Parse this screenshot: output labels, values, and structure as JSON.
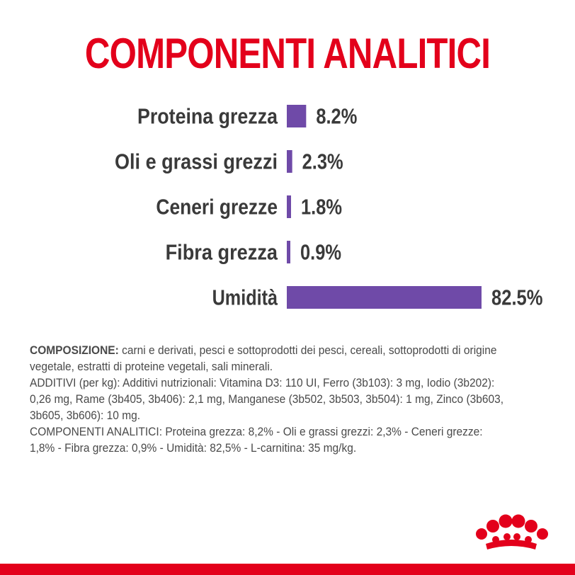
{
  "title": "COMPONENTI ANALITICI",
  "colors": {
    "title": "#e3001b",
    "bars": "#6f4aa8",
    "labels": "#3a3a3a",
    "body_text": "#4a4a4a",
    "brand": "#e3001b"
  },
  "chart_data": {
    "type": "bar",
    "orientation": "horizontal",
    "title": "COMPONENTI ANALITICI",
    "categories": [
      "Proteina grezza",
      "Oli e grassi grezzi",
      "Ceneri grezze",
      "Fibra grezza",
      "Umidità"
    ],
    "values": [
      8.2,
      2.3,
      1.8,
      0.9,
      82.5
    ],
    "value_labels": [
      "8.2%",
      "2.3%",
      "1.8%",
      "0.9%",
      "82.5%"
    ],
    "unit": "%",
    "xlim": [
      0,
      82.5
    ],
    "grid": false,
    "legend": "none"
  },
  "composition": {
    "composizione_heading": "COMPOSIZIONE:",
    "composizione_text": " carni e derivati, pesci e sottoprodotti dei pesci, cereali, sottoprodotti di origine vegetale, estratti di proteine vegetali, sali minerali.",
    "additivi_text": "ADDITIVI (per kg): Additivi nutrizionali: Vitamina D3: 110 UI, Ferro (3b103): 3 mg, Iodio (3b202): 0,26 mg, Rame (3b405, 3b406): 2,1 mg, Manganese (3b502, 3b503, 3b504): 1 mg, Zinco (3b603, 3b605, 3b606): 10 mg.",
    "componenti_text": "COMPONENTI ANALITICI: Proteina grezza: 8,2% - Oli e grassi grezzi: 2,3% - Ceneri grezze: 1,8% - Fibra grezza: 0,9% - Umidità: 82,5% - L-carnitina: 35 mg/kg."
  },
  "logo": {
    "icon": "royal-canin-crown-icon"
  }
}
